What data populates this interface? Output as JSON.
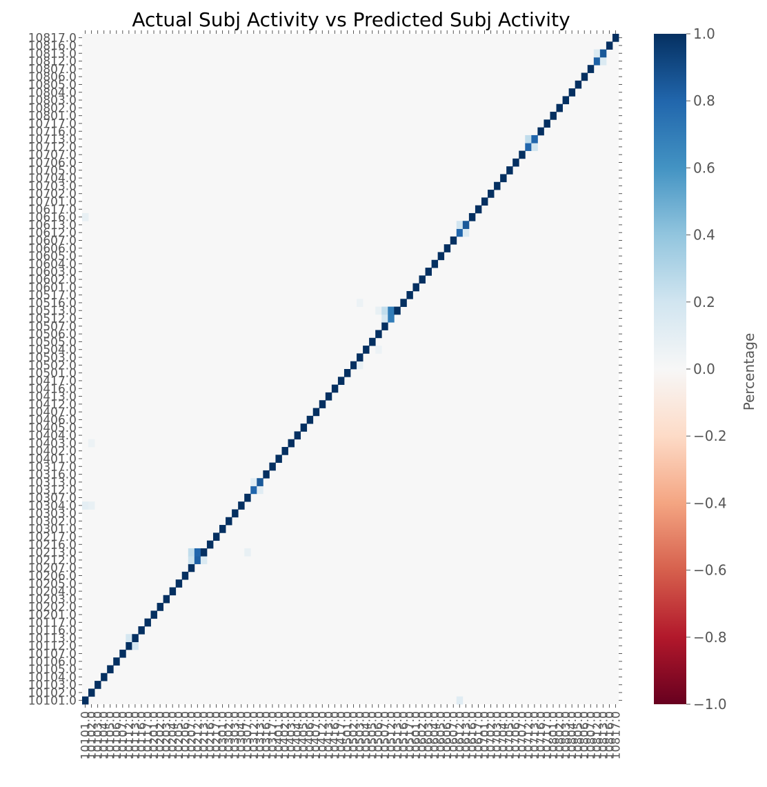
{
  "chart_data": {
    "type": "heatmap",
    "title": "Actual Subj Activity vs Predicted Subj Activity",
    "xlabel": "",
    "ylabel": "",
    "categories": [
      "10101.0",
      "10102.0",
      "10103.0",
      "10104.0",
      "10105.0",
      "10106.0",
      "10107.0",
      "10112.0",
      "10113.0",
      "10116.0",
      "10117.0",
      "10201.0",
      "10202.0",
      "10203.0",
      "10204.0",
      "10205.0",
      "10206.0",
      "10207.0",
      "10212.0",
      "10213.0",
      "10216.0",
      "10217.0",
      "10301.0",
      "10302.0",
      "10303.0",
      "10304.0",
      "10307.0",
      "10312.0",
      "10313.0",
      "10316.0",
      "10317.0",
      "10401.0",
      "10402.0",
      "10403.0",
      "10404.0",
      "10405.0",
      "10406.0",
      "10407.0",
      "10412.0",
      "10413.0",
      "10416.0",
      "10417.0",
      "10501.0",
      "10502.0",
      "10503.0",
      "10504.0",
      "10505.0",
      "10506.0",
      "10507.0",
      "10512.0",
      "10513.0",
      "10516.0",
      "10517.0",
      "10601.0",
      "10602.0",
      "10603.0",
      "10604.0",
      "10605.0",
      "10606.0",
      "10607.0",
      "10612.0",
      "10613.0",
      "10616.0",
      "10617.0",
      "10701.0",
      "10702.0",
      "10703.0",
      "10704.0",
      "10705.0",
      "10706.0",
      "10707.0",
      "10712.0",
      "10713.0",
      "10716.0",
      "10717.0",
      "10801.0",
      "10802.0",
      "10803.0",
      "10804.0",
      "10805.0",
      "10806.0",
      "10807.0",
      "10812.0",
      "10813.0",
      "10816.0",
      "10817.0"
    ],
    "y_order": "bottom-to-top",
    "diagonal_value": 1.0,
    "off_diagonal_default": 0.0,
    "off_diagonal_cells": [
      {
        "row": 7,
        "col": 8,
        "value": 0.18
      },
      {
        "row": 8,
        "col": 7,
        "value": 0.18
      },
      {
        "row": 18,
        "col": 17,
        "value": 0.22
      },
      {
        "row": 18,
        "col": 18,
        "value": 0.82
      },
      {
        "row": 18,
        "col": 19,
        "value": 0.15
      },
      {
        "row": 19,
        "col": 17,
        "value": 0.25
      },
      {
        "row": 19,
        "col": 18,
        "value": 0.8
      },
      {
        "row": 27,
        "col": 27,
        "value": 0.8
      },
      {
        "row": 27,
        "col": 28,
        "value": 0.12
      },
      {
        "row": 28,
        "col": 27,
        "value": 0.12
      },
      {
        "row": 28,
        "col": 28,
        "value": 0.85
      },
      {
        "row": 49,
        "col": 48,
        "value": 0.18
      },
      {
        "row": 49,
        "col": 49,
        "value": 0.7
      },
      {
        "row": 50,
        "col": 47,
        "value": 0.08
      },
      {
        "row": 50,
        "col": 48,
        "value": 0.25
      },
      {
        "row": 50,
        "col": 49,
        "value": 0.7
      },
      {
        "row": 60,
        "col": 60,
        "value": 0.8
      },
      {
        "row": 60,
        "col": 61,
        "value": 0.15
      },
      {
        "row": 61,
        "col": 60,
        "value": 0.2
      },
      {
        "row": 61,
        "col": 61,
        "value": 0.85
      },
      {
        "row": 71,
        "col": 71,
        "value": 0.8
      },
      {
        "row": 71,
        "col": 72,
        "value": 0.2
      },
      {
        "row": 72,
        "col": 71,
        "value": 0.25
      },
      {
        "row": 72,
        "col": 72,
        "value": 0.8
      },
      {
        "row": 82,
        "col": 82,
        "value": 0.82
      },
      {
        "row": 82,
        "col": 83,
        "value": 0.15
      },
      {
        "row": 83,
        "col": 82,
        "value": 0.15
      },
      {
        "row": 83,
        "col": 83,
        "value": 0.85
      },
      {
        "row": 0,
        "col": 60,
        "value": 0.12
      },
      {
        "row": 25,
        "col": 0,
        "value": 0.1
      },
      {
        "row": 25,
        "col": 1,
        "value": 0.08
      },
      {
        "row": 19,
        "col": 26,
        "value": 0.08
      },
      {
        "row": 33,
        "col": 1,
        "value": 0.06
      },
      {
        "row": 62,
        "col": 0,
        "value": 0.08
      },
      {
        "row": 45,
        "col": 47,
        "value": 0.06
      },
      {
        "row": 51,
        "col": 44,
        "value": 0.06
      },
      {
        "row": 43,
        "col": 44,
        "value": 0.08
      }
    ],
    "colorbar": {
      "label": "Percentage",
      "range": [
        -1.0,
        1.0
      ],
      "ticks": [
        "1.0",
        "0.8",
        "0.6",
        "0.4",
        "0.2",
        "0.0",
        "−0.2",
        "−0.4",
        "−0.6",
        "−0.8",
        "−1.0"
      ],
      "colormap": "RdBu"
    }
  }
}
